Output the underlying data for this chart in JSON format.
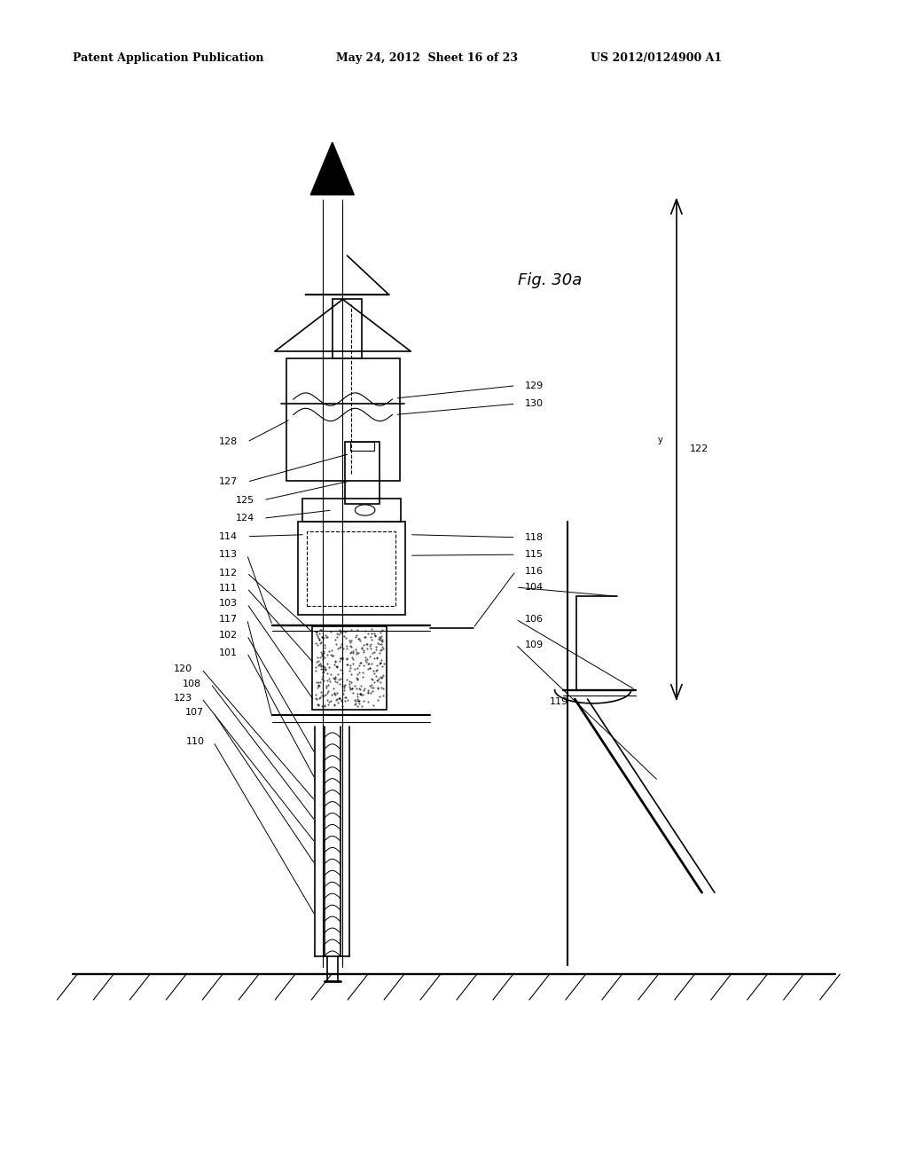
{
  "title_left": "Patent Application Publication",
  "title_mid": "May 24, 2012  Sheet 16 of 23",
  "title_right": "US 2012/0124900 A1",
  "fig_label": "Fig. 30a",
  "bg_color": "#ffffff",
  "line_color": "#000000"
}
